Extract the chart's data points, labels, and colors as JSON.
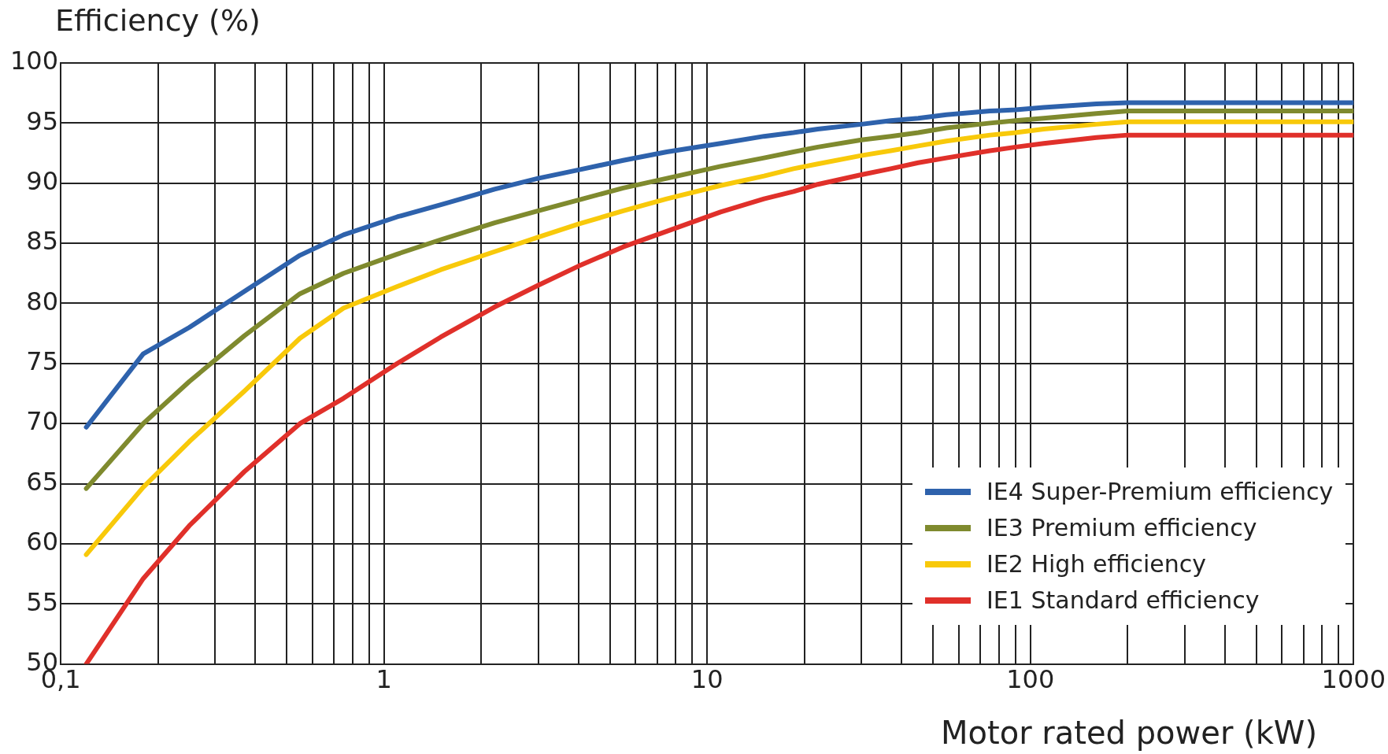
{
  "chart_data": {
    "type": "line",
    "xlabel": "Motor rated power (kW)",
    "ylabel": "Efficiency (%)",
    "log": "x",
    "grid": true,
    "legend": "bottom right",
    "x": [
      0.12,
      0.18,
      0.25,
      0.37,
      0.55,
      0.75,
      1.1,
      1.5,
      2.2,
      3,
      4,
      5.5,
      7.5,
      11,
      15,
      18.5,
      22,
      30,
      37,
      45,
      55,
      75,
      90,
      110,
      160,
      200,
      1000
    ],
    "xlim": [
      0.1,
      1000
    ],
    "ylim": [
      50,
      100
    ],
    "xticks": [
      {
        "value": 0.1,
        "label": "0,1"
      },
      {
        "value": 0.2,
        "label": null
      },
      {
        "value": 0.3,
        "label": null
      },
      {
        "value": 0.4,
        "label": null
      },
      {
        "value": 0.5,
        "label": null
      },
      {
        "value": 0.6,
        "label": null
      },
      {
        "value": 0.7,
        "label": null
      },
      {
        "value": 0.8,
        "label": null
      },
      {
        "value": 0.9,
        "label": null
      },
      1,
      {
        "value": 2,
        "label": null
      },
      {
        "value": 3,
        "label": null
      },
      {
        "value": 4,
        "label": null
      },
      {
        "value": 5,
        "label": null
      },
      {
        "value": 6,
        "label": null
      },
      {
        "value": 7,
        "label": null
      },
      {
        "value": 8,
        "label": null
      },
      {
        "value": 9,
        "label": null
      },
      10,
      {
        "value": 20,
        "label": null
      },
      {
        "value": 30,
        "label": null
      },
      {
        "value": 40,
        "label": null
      },
      {
        "value": 50,
        "label": null
      },
      {
        "value": 60,
        "label": null
      },
      {
        "value": 70,
        "label": null
      },
      {
        "value": 80,
        "label": null
      },
      {
        "value": 90,
        "label": null
      },
      100,
      {
        "value": 200,
        "label": null
      },
      {
        "value": 300,
        "label": null
      },
      {
        "value": 400,
        "label": null
      },
      {
        "value": 500,
        "label": null
      },
      {
        "value": 600,
        "label": null
      },
      {
        "value": 700,
        "label": null
      },
      {
        "value": 800,
        "label": null
      },
      {
        "value": 900,
        "label": null
      },
      1000
    ],
    "yticks": [
      50,
      55,
      60,
      65,
      70,
      75,
      80,
      85,
      90,
      95,
      100
    ],
    "series": [
      {
        "name": "IE4 Super-Premium efficiency",
        "color": "#2e62ac",
        "values": [
          69.7,
          75.8,
          78,
          81,
          84,
          85.7,
          87.2,
          88.2,
          89.5,
          90.4,
          91.1,
          91.9,
          92.6,
          93.3,
          93.9,
          94.2,
          94.5,
          94.9,
          95.2,
          95.4,
          95.7,
          96,
          96.1,
          96.3,
          96.6,
          96.7,
          96.7
        ]
      },
      {
        "name": "IE3 Premium efficiency",
        "color": "#7f8a2e",
        "values": [
          64.6,
          70,
          73.5,
          77.3,
          80.8,
          82.5,
          84.1,
          85.3,
          86.7,
          87.7,
          88.6,
          89.6,
          90.4,
          91.4,
          92.1,
          92.6,
          93,
          93.6,
          93.9,
          94.2,
          94.6,
          95,
          95.2,
          95.4,
          95.8,
          96,
          96
        ]
      },
      {
        "name": "IE2 High efficiency",
        "color": "#f8c90a",
        "values": [
          59.1,
          64.7,
          68.5,
          72.7,
          77.1,
          79.6,
          81.4,
          82.8,
          84.3,
          85.5,
          86.6,
          87.7,
          88.7,
          89.8,
          90.6,
          91.2,
          91.6,
          92.3,
          92.7,
          93.1,
          93.5,
          94,
          94.2,
          94.5,
          94.9,
          95.1,
          95.1
        ]
      },
      {
        "name": "IE1 Standard efficiency",
        "color": "#e0302a",
        "values": [
          50,
          57.1,
          61.5,
          66,
          70,
          72.1,
          75,
          77.2,
          79.7,
          81.5,
          83.1,
          84.7,
          86,
          87.6,
          88.7,
          89.3,
          89.9,
          90.7,
          91.2,
          91.7,
          92.1,
          92.7,
          93,
          93.3,
          93.8,
          94,
          94
        ]
      }
    ]
  }
}
